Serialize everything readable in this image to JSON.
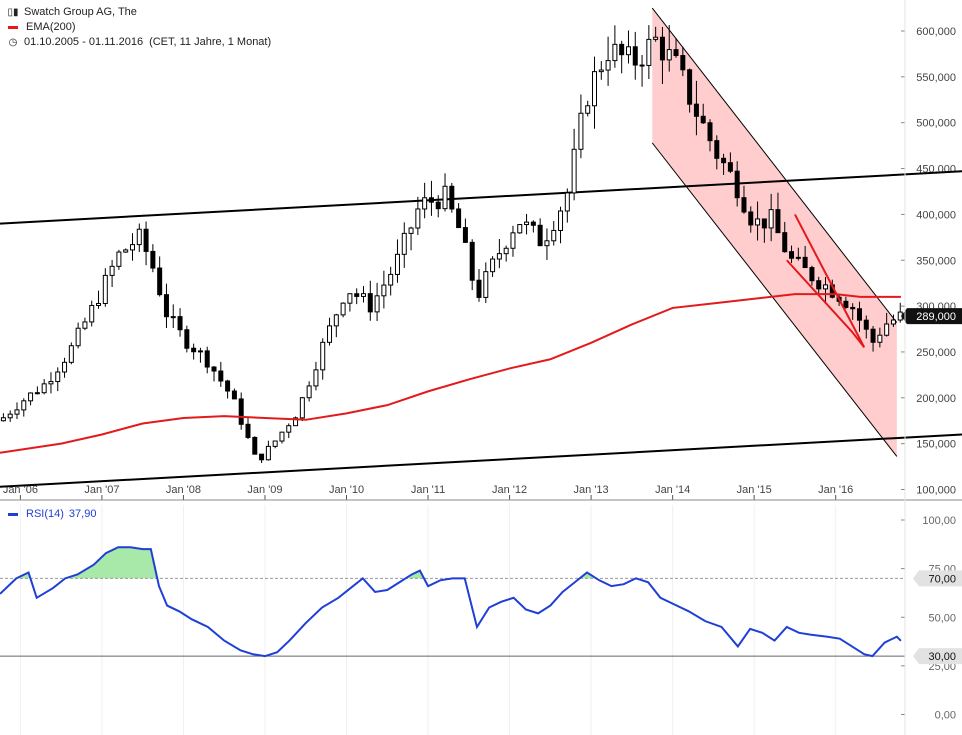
{
  "header": {
    "instrument": "Swatch Group AG, The",
    "ema_label": "EMA(200)",
    "period_label": "01.10.2005 - 01.11.2016",
    "period_info": "(CET, 11 Jahre, 1 Monat)",
    "candles_icon": "candlestick-icon",
    "clock_icon": "clock-icon"
  },
  "rsi_header": {
    "label": "RSI(14)",
    "value": "37,90"
  },
  "colors": {
    "ema": "#e31a1c",
    "rsi": "#1f3fd6",
    "channel_fill": "#ffc4c4",
    "overbought_fill": "#a8e8a8",
    "candle": "#000000"
  },
  "chart_data": [
    {
      "type": "candlestick",
      "title": "Swatch Group AG, The",
      "series": [
        {
          "name": "Swatch Group AG, The",
          "kind": "close"
        },
        {
          "name": "EMA(200)",
          "kind": "ema"
        }
      ],
      "x_range": [
        2005.75,
        2016.85
      ],
      "ylim": [
        100,
        625
      ],
      "y_ticks": [
        "100,000",
        "150,000",
        "200,000",
        "250,000",
        "300,000",
        "350,000",
        "400,000",
        "450,000",
        "500,000",
        "550,000",
        "600,000"
      ],
      "y_tick_values": [
        100,
        150,
        200,
        250,
        300,
        350,
        400,
        450,
        500,
        550,
        600
      ],
      "x_ticks": [
        "Jan '06",
        "Jan '07",
        "Jan '08",
        "Jan '09",
        "Jan '10",
        "Jan '11",
        "Jan '12",
        "Jan '13",
        "Jan '14",
        "Jan '15",
        "Jan '16"
      ],
      "x_tick_values": [
        2006,
        2007,
        2008,
        2009,
        2010,
        2011,
        2012,
        2013,
        2014,
        2015,
        2016
      ],
      "last_value_label": "289,000",
      "last_value": 289,
      "close_points": [
        [
          2005.75,
          175
        ],
        [
          2006.0,
          195
        ],
        [
          2006.3,
          215
        ],
        [
          2006.6,
          250
        ],
        [
          2006.9,
          300
        ],
        [
          2007.2,
          355
        ],
        [
          2007.45,
          375
        ],
        [
          2007.6,
          350
        ],
        [
          2007.8,
          290
        ],
        [
          2008.0,
          265
        ],
        [
          2008.3,
          240
        ],
        [
          2008.6,
          200
        ],
        [
          2008.9,
          130
        ],
        [
          2009.1,
          150
        ],
        [
          2009.4,
          185
        ],
        [
          2009.7,
          255
        ],
        [
          2010.0,
          320
        ],
        [
          2010.3,
          300
        ],
        [
          2010.6,
          345
        ],
        [
          2010.9,
          410
        ],
        [
          2011.2,
          420
        ],
        [
          2011.4,
          380
        ],
        [
          2011.6,
          310
        ],
        [
          2011.85,
          355
        ],
        [
          2012.1,
          395
        ],
        [
          2012.4,
          370
        ],
        [
          2012.7,
          420
        ],
        [
          2012.95,
          530
        ],
        [
          2013.2,
          580
        ],
        [
          2013.5,
          565
        ],
        [
          2013.8,
          590
        ],
        [
          2014.05,
          560
        ],
        [
          2014.3,
          510
        ],
        [
          2014.55,
          465
        ],
        [
          2014.8,
          430
        ],
        [
          2015.0,
          390
        ],
        [
          2015.2,
          395
        ],
        [
          2015.45,
          350
        ],
        [
          2015.75,
          330
        ],
        [
          2016.0,
          315
        ],
        [
          2016.2,
          300
        ],
        [
          2016.45,
          260
        ],
        [
          2016.6,
          280
        ],
        [
          2016.8,
          289
        ]
      ],
      "ema_points": [
        [
          2005.75,
          140
        ],
        [
          2006.5,
          150
        ],
        [
          2007.0,
          160
        ],
        [
          2007.5,
          172
        ],
        [
          2008.0,
          178
        ],
        [
          2008.5,
          180
        ],
        [
          2009.0,
          178
        ],
        [
          2009.5,
          176
        ],
        [
          2010.0,
          183
        ],
        [
          2010.5,
          192
        ],
        [
          2011.0,
          207
        ],
        [
          2011.5,
          220
        ],
        [
          2012.0,
          232
        ],
        [
          2012.5,
          242
        ],
        [
          2013.0,
          260
        ],
        [
          2013.5,
          280
        ],
        [
          2014.0,
          298
        ],
        [
          2014.5,
          303
        ],
        [
          2015.0,
          308
        ],
        [
          2015.5,
          313
        ],
        [
          2016.0,
          313
        ],
        [
          2016.3,
          310
        ],
        [
          2016.6,
          310
        ],
        [
          2016.8,
          310
        ]
      ],
      "trendlines": [
        {
          "from": [
            2005.75,
            390
          ],
          "to": [
            2016.85,
            447
          ]
        },
        {
          "from": [
            2005.75,
            103
          ],
          "to": [
            2016.85,
            160
          ]
        }
      ],
      "channel": {
        "upper": {
          "from": [
            2013.75,
            625
          ],
          "to": [
            2016.75,
            282
          ]
        },
        "lower": {
          "from": [
            2013.75,
            478
          ],
          "to": [
            2016.75,
            136
          ]
        }
      },
      "inner_wedge": [
        [
          2015.5,
          400
        ],
        [
          2016.35,
          255
        ],
        [
          2016.2,
          272
        ],
        [
          2015.4,
          350
        ]
      ]
    },
    {
      "type": "line",
      "series": [
        {
          "name": "RSI(14)",
          "current": 37.9
        }
      ],
      "ylim": [
        0,
        100
      ],
      "y_ticks": [
        "0,00",
        "25,00",
        "50,00",
        "75,00",
        "100,00"
      ],
      "y_tick_values": [
        0,
        25,
        50,
        75,
        100
      ],
      "levels": [
        {
          "value": 70,
          "label": "70,00"
        },
        {
          "value": 30,
          "label": "30,00"
        }
      ],
      "points": [
        [
          2005.75,
          62
        ],
        [
          2005.95,
          70
        ],
        [
          2006.1,
          73
        ],
        [
          2006.2,
          60
        ],
        [
          2006.4,
          65
        ],
        [
          2006.55,
          70
        ],
        [
          2006.7,
          72
        ],
        [
          2006.9,
          77
        ],
        [
          2007.05,
          83
        ],
        [
          2007.2,
          86
        ],
        [
          2007.35,
          86
        ],
        [
          2007.5,
          85
        ],
        [
          2007.6,
          85
        ],
        [
          2007.7,
          66
        ],
        [
          2007.8,
          56
        ],
        [
          2007.95,
          53
        ],
        [
          2008.1,
          49
        ],
        [
          2008.3,
          45
        ],
        [
          2008.5,
          38
        ],
        [
          2008.7,
          33
        ],
        [
          2008.85,
          31
        ],
        [
          2009.0,
          30
        ],
        [
          2009.15,
          32
        ],
        [
          2009.3,
          38
        ],
        [
          2009.5,
          47
        ],
        [
          2009.7,
          55
        ],
        [
          2009.9,
          60
        ],
        [
          2010.05,
          65
        ],
        [
          2010.2,
          70
        ],
        [
          2010.35,
          63
        ],
        [
          2010.5,
          64
        ],
        [
          2010.65,
          68
        ],
        [
          2010.8,
          72
        ],
        [
          2010.9,
          74
        ],
        [
          2011.0,
          66
        ],
        [
          2011.15,
          69
        ],
        [
          2011.3,
          70
        ],
        [
          2011.45,
          70
        ],
        [
          2011.6,
          45
        ],
        [
          2011.75,
          55
        ],
        [
          2011.9,
          58
        ],
        [
          2012.05,
          60
        ],
        [
          2012.2,
          54
        ],
        [
          2012.35,
          52
        ],
        [
          2012.5,
          56
        ],
        [
          2012.65,
          63
        ],
        [
          2012.8,
          68
        ],
        [
          2012.95,
          73
        ],
        [
          2013.1,
          69
        ],
        [
          2013.25,
          66
        ],
        [
          2013.4,
          67
        ],
        [
          2013.55,
          70
        ],
        [
          2013.7,
          68
        ],
        [
          2013.85,
          60
        ],
        [
          2014.0,
          57
        ],
        [
          2014.2,
          53
        ],
        [
          2014.4,
          48
        ],
        [
          2014.6,
          45
        ],
        [
          2014.8,
          35
        ],
        [
          2014.95,
          44
        ],
        [
          2015.1,
          42
        ],
        [
          2015.25,
          38
        ],
        [
          2015.4,
          45
        ],
        [
          2015.55,
          42
        ],
        [
          2015.7,
          41
        ],
        [
          2015.9,
          40
        ],
        [
          2016.05,
          39
        ],
        [
          2016.2,
          35
        ],
        [
          2016.35,
          31
        ],
        [
          2016.45,
          30
        ],
        [
          2016.6,
          37
        ],
        [
          2016.75,
          40
        ],
        [
          2016.8,
          37.9
        ]
      ]
    }
  ]
}
